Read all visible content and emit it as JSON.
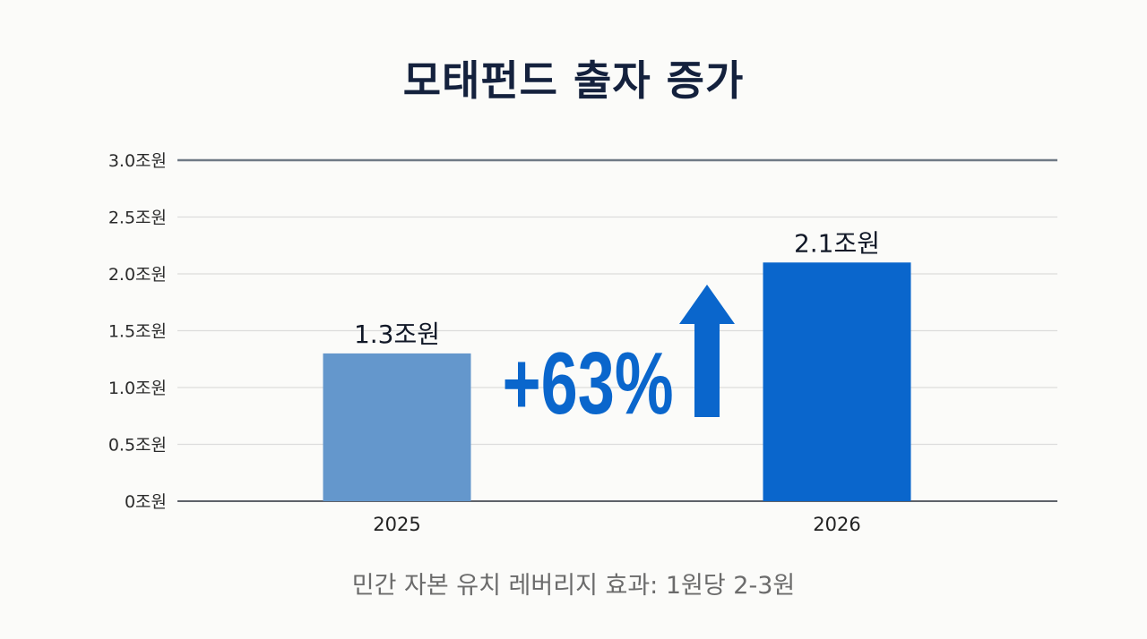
{
  "chart_data": {
    "type": "bar",
    "title": "모태펀드 출자 증가",
    "categories": [
      "2025",
      "2026"
    ],
    "values": [
      1.3,
      2.1
    ],
    "value_labels": [
      "1.3조원",
      "2.1조원"
    ],
    "bar_colors": [
      "#6497cc",
      "#0a66cc"
    ],
    "yticks": [
      0,
      0.5,
      1.0,
      1.5,
      2.0,
      2.5,
      3.0
    ],
    "ytick_labels": [
      "0조원",
      "0.5조원",
      "1.0조원",
      "1.5조원",
      "2.0조원",
      "2.5조원",
      "3.0조원"
    ],
    "ylim": [
      0,
      3.0
    ],
    "xlabel": "",
    "ylabel": "",
    "grid": true,
    "annotation": {
      "text": "+63%",
      "color": "#0a66cc",
      "arrow": "up-arrow-icon"
    },
    "footnote": "민간 자본 유치 레버리지 효과: 1원당 2-3원"
  }
}
